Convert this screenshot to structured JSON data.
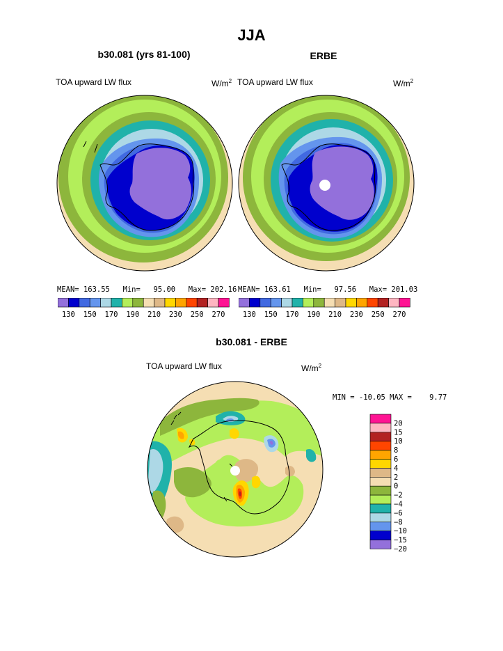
{
  "page_title": "JJA",
  "panels": [
    {
      "heading": "b30.081 (yrs 81-100)",
      "variable": "TOA upward LW flux",
      "units_base": "W/m",
      "units_exp": "2",
      "stats": {
        "mean_label": "MEAN=",
        "mean": "163.55",
        "min_label": "Min=",
        "min": "95.00",
        "max_label": "Max=",
        "max": "202.16"
      }
    },
    {
      "heading": "ERBE",
      "variable": "TOA upward LW flux",
      "units_base": "W/m",
      "units_exp": "2",
      "stats": {
        "mean_label": "MEAN=",
        "mean": "163.61",
        "min_label": "Min=",
        "min": "97.56",
        "max_label": "Max=",
        "max": "201.03"
      }
    }
  ],
  "diff_panel": {
    "heading": "b30.081 - ERBE",
    "variable": "TOA upward LW flux",
    "units_base": "W/m",
    "units_exp": "2",
    "minmax": "MIN = -10.05 MAX =    9.77"
  },
  "chart_data": [
    {
      "type": "heatmap",
      "projection": "south polar stereographic",
      "title": "b30.081 (yrs 81-100)",
      "colorbar": {
        "orientation": "horizontal",
        "colors": [
          "#9370db",
          "#0000cd",
          "#4169e1",
          "#6495ed",
          "#add8e6",
          "#20b2aa",
          "#b3ee5a",
          "#8db63c",
          "#f5deb3",
          "#deb887",
          "#ffd700",
          "#ffa500",
          "#ff4500",
          "#b22222",
          "#ffb6c1",
          "#ff1493"
        ],
        "tick_labels": [
          "130",
          "150",
          "170",
          "190",
          "210",
          "230",
          "250",
          "270"
        ]
      },
      "mean": 163.55,
      "min": 95.0,
      "max": 202.16
    },
    {
      "type": "heatmap",
      "projection": "south polar stereographic",
      "title": "ERBE",
      "colorbar": {
        "orientation": "horizontal",
        "colors": [
          "#9370db",
          "#0000cd",
          "#4169e1",
          "#6495ed",
          "#add8e6",
          "#20b2aa",
          "#b3ee5a",
          "#8db63c",
          "#f5deb3",
          "#deb887",
          "#ffd700",
          "#ffa500",
          "#ff4500",
          "#b22222",
          "#ffb6c1",
          "#ff1493"
        ],
        "tick_labels": [
          "130",
          "150",
          "170",
          "190",
          "210",
          "230",
          "250",
          "270"
        ]
      },
      "mean": 163.61,
      "min": 97.56,
      "max": 201.03
    },
    {
      "type": "heatmap",
      "projection": "south polar stereographic",
      "title": "b30.081 - ERBE",
      "colorbar": {
        "orientation": "vertical",
        "colors_top_to_bottom": [
          "#ff1493",
          "#ffb6c1",
          "#b22222",
          "#ff4500",
          "#ffa500",
          "#ffd700",
          "#deb887",
          "#f5deb3",
          "#8db63c",
          "#b3ee5a",
          "#20b2aa",
          "#add8e6",
          "#6495ed",
          "#0000cd",
          "#9370db"
        ],
        "tick_labels": [
          "20",
          "15",
          "10",
          "8",
          "6",
          "4",
          "2",
          "0",
          "−2",
          "−4",
          "−6",
          "−8",
          "−10",
          "−15",
          "−20"
        ]
      },
      "min": -10.05,
      "max": 9.77
    }
  ]
}
